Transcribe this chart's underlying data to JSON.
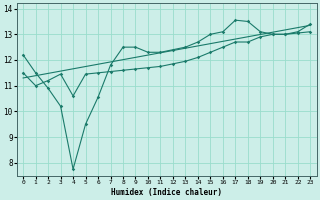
{
  "xlabel": "Humidex (Indice chaleur)",
  "xlim": [
    -0.5,
    23.5
  ],
  "ylim": [
    7.5,
    14.2
  ],
  "yticks": [
    8,
    9,
    10,
    11,
    12,
    13,
    14
  ],
  "xticks": [
    0,
    1,
    2,
    3,
    4,
    5,
    6,
    7,
    8,
    9,
    10,
    11,
    12,
    13,
    14,
    15,
    16,
    17,
    18,
    19,
    20,
    21,
    22,
    23
  ],
  "bg_color": "#cceee8",
  "grid_color": "#99ddcc",
  "line_color": "#1a7a6a",
  "line1_x": [
    0,
    1,
    2,
    3,
    4,
    5,
    6,
    7,
    8,
    9,
    10,
    11,
    12,
    13,
    14,
    15,
    16,
    17,
    18,
    19,
    20,
    21,
    22,
    23
  ],
  "line1_y": [
    12.2,
    11.5,
    10.9,
    10.2,
    7.75,
    9.5,
    10.55,
    11.8,
    12.5,
    12.5,
    12.3,
    12.3,
    12.4,
    12.5,
    12.7,
    13.0,
    13.1,
    13.55,
    13.5,
    13.1,
    13.0,
    13.0,
    13.1,
    13.4
  ],
  "line2_x": [
    0,
    1,
    2,
    3,
    4,
    5,
    6,
    7,
    8,
    9,
    10,
    11,
    12,
    13,
    14,
    15,
    16,
    17,
    18,
    19,
    20,
    21,
    22,
    23
  ],
  "line2_y": [
    11.5,
    11.0,
    11.2,
    11.45,
    10.6,
    11.45,
    11.5,
    11.55,
    11.6,
    11.65,
    11.7,
    11.75,
    11.85,
    11.95,
    12.1,
    12.3,
    12.5,
    12.7,
    12.7,
    12.9,
    13.0,
    13.0,
    13.05,
    13.1
  ],
  "line3_x": [
    0,
    23
  ],
  "line3_y": [
    11.3,
    13.35
  ]
}
